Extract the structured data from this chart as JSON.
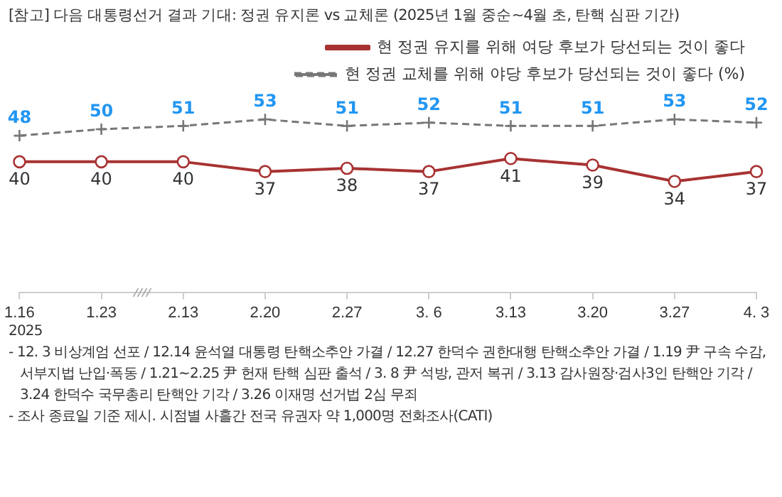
{
  "chart_data": {
    "type": "line",
    "title": "[참고] 다음 대통령선거 결과 기대: 정권 유지론 vs 교체론 (2025년 1월 중순~4월 초, 탄핵 심판 기간)",
    "categories": [
      "1.16",
      "1.23",
      "2.13",
      "2.20",
      "2.27",
      "3. 6",
      "3.13",
      "3.20",
      "3.27",
      "4. 3"
    ],
    "series": [
      {
        "name": "현 정권 유지를 위해 여당 후보가 당선되는 것이 좋다",
        "color": "#a83232",
        "values": [
          40,
          40,
          40,
          37,
          38,
          37,
          41,
          39,
          34,
          37
        ],
        "marker": "circle",
        "line_style": "solid"
      },
      {
        "name": "현 정권 교체를 위해 야당 후보가 당선되는 것이 좋다 (%)",
        "color": "#777777",
        "values": [
          48,
          50,
          51,
          53,
          51,
          52,
          51,
          51,
          53,
          52
        ],
        "marker": "cross",
        "line_style": "dashed"
      }
    ],
    "data_labels": true,
    "legend": "top right",
    "grid": false,
    "tick_labels": "x",
    "annotations": [
      "2025",
      "- 12. 3 비상계엄 선포 / 12.14 윤석열 대통령 탄핵소추안 가결 / 12.27 한덕수 권한대행 탄핵소추안 가결 / 1.19 尹 구속 수감, 서부지법 난입·폭동 / 1.21~2.25 尹 헌재 탄핵 심판 출석 / 3. 8 尹 석방, 관저 복귀 / 3.13 감사원장·검사3인 탄핵안 기각 / 3.24 한덕수 국무총리 탄핵안 기각 / 3.26 이재명 선거법 2심 무죄",
      "- 조사 종료일 기준 제시. 시점별 사흘간 전국 유권자 약 1,000명 전화조사(CATI)"
    ]
  }
}
